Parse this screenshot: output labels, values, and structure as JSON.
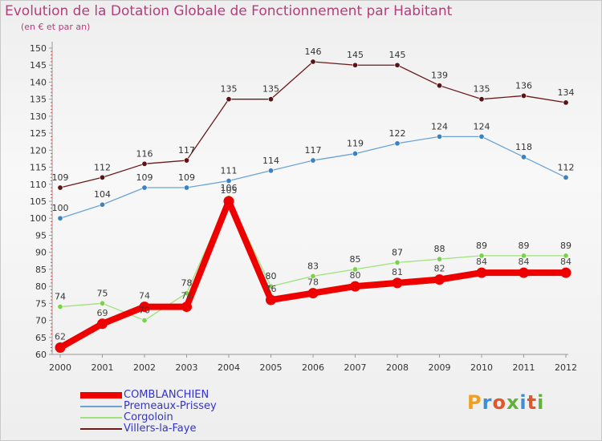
{
  "title": "Evolution de la Dotation Globale de Fonctionnement par Habitant",
  "subtitle": "(en € et par an)",
  "logo_text": "Proxiti",
  "chart_data": {
    "type": "line",
    "title": "Evolution de la Dotation Globale de Fonctionnement par Habitant",
    "subtitle": "(en € et par an)",
    "xlabel": "",
    "ylabel": "",
    "ylim": [
      60,
      150
    ],
    "yticks": [
      60,
      65,
      70,
      75,
      80,
      85,
      90,
      95,
      100,
      105,
      110,
      115,
      120,
      125,
      130,
      135,
      140,
      145,
      150
    ],
    "grid": false,
    "legend_position": "bottom-left",
    "categories": [
      "2000",
      "2001",
      "2002",
      "2003",
      "2004",
      "2005",
      "2006",
      "2007",
      "2008",
      "2009",
      "2010",
      "2011",
      "2012"
    ],
    "series": [
      {
        "name": "Villers-la-Faye",
        "color": "#6b1a1a",
        "marker_color": "#5a1414",
        "label_color": "#333333",
        "values": [
          109,
          112,
          116,
          117,
          135,
          135,
          146,
          145,
          145,
          139,
          135,
          136,
          134
        ],
        "labels": [
          "109",
          "112",
          "116",
          "117",
          "135",
          "135",
          "146",
          "145",
          "145",
          "139",
          "135",
          "136",
          "134"
        ]
      },
      {
        "name": "Premeaux-Prissey",
        "color": "#6ba3d6",
        "marker_color": "#3c82c0",
        "label_color": "#333333",
        "values": [
          100,
          104,
          109,
          109,
          111,
          114,
          117,
          119,
          122,
          124,
          124,
          118,
          112
        ],
        "labels": [
          "100",
          "104",
          "109",
          "109",
          "111",
          "114",
          "117",
          "119",
          "122",
          "124",
          "124",
          "118",
          "112"
        ]
      },
      {
        "name": "Corgoloin",
        "color": "#9ee27a",
        "marker_color": "#7cd14a",
        "label_color": "#333333",
        "values": [
          74,
          75,
          70,
          78,
          106,
          80,
          83,
          85,
          87,
          88,
          89,
          89,
          89
        ],
        "labels": [
          "74",
          "75",
          "70",
          "78",
          "106",
          "80",
          "83",
          "85",
          "87",
          "88",
          "89",
          "89",
          "89"
        ]
      },
      {
        "name": "COMBLANCHIEN",
        "color": "#ee0000",
        "marker_color": "#ee0000",
        "label_color": "#444444",
        "emphasis": true,
        "values": [
          62,
          69,
          74,
          74,
          105,
          76,
          78,
          80,
          81,
          82,
          84,
          84,
          84
        ],
        "labels": [
          "62",
          "69",
          "74",
          "74",
          "105",
          "76",
          "78",
          "80",
          "81",
          "82",
          "84",
          "84",
          "84"
        ]
      }
    ]
  },
  "legend": [
    {
      "label": "COMBLANCHIEN",
      "color": "#ee0000",
      "text_color": "#3333cc",
      "thick": true
    },
    {
      "label": "Premeaux-Prissey",
      "color": "#6ba3d6",
      "text_color": "#3333cc",
      "thick": false
    },
    {
      "label": "Corgoloin",
      "color": "#9ee27a",
      "text_color": "#3333cc",
      "thick": false
    },
    {
      "label": "Villers-la-Faye",
      "color": "#6b1a1a",
      "text_color": "#3333cc",
      "thick": false
    }
  ]
}
